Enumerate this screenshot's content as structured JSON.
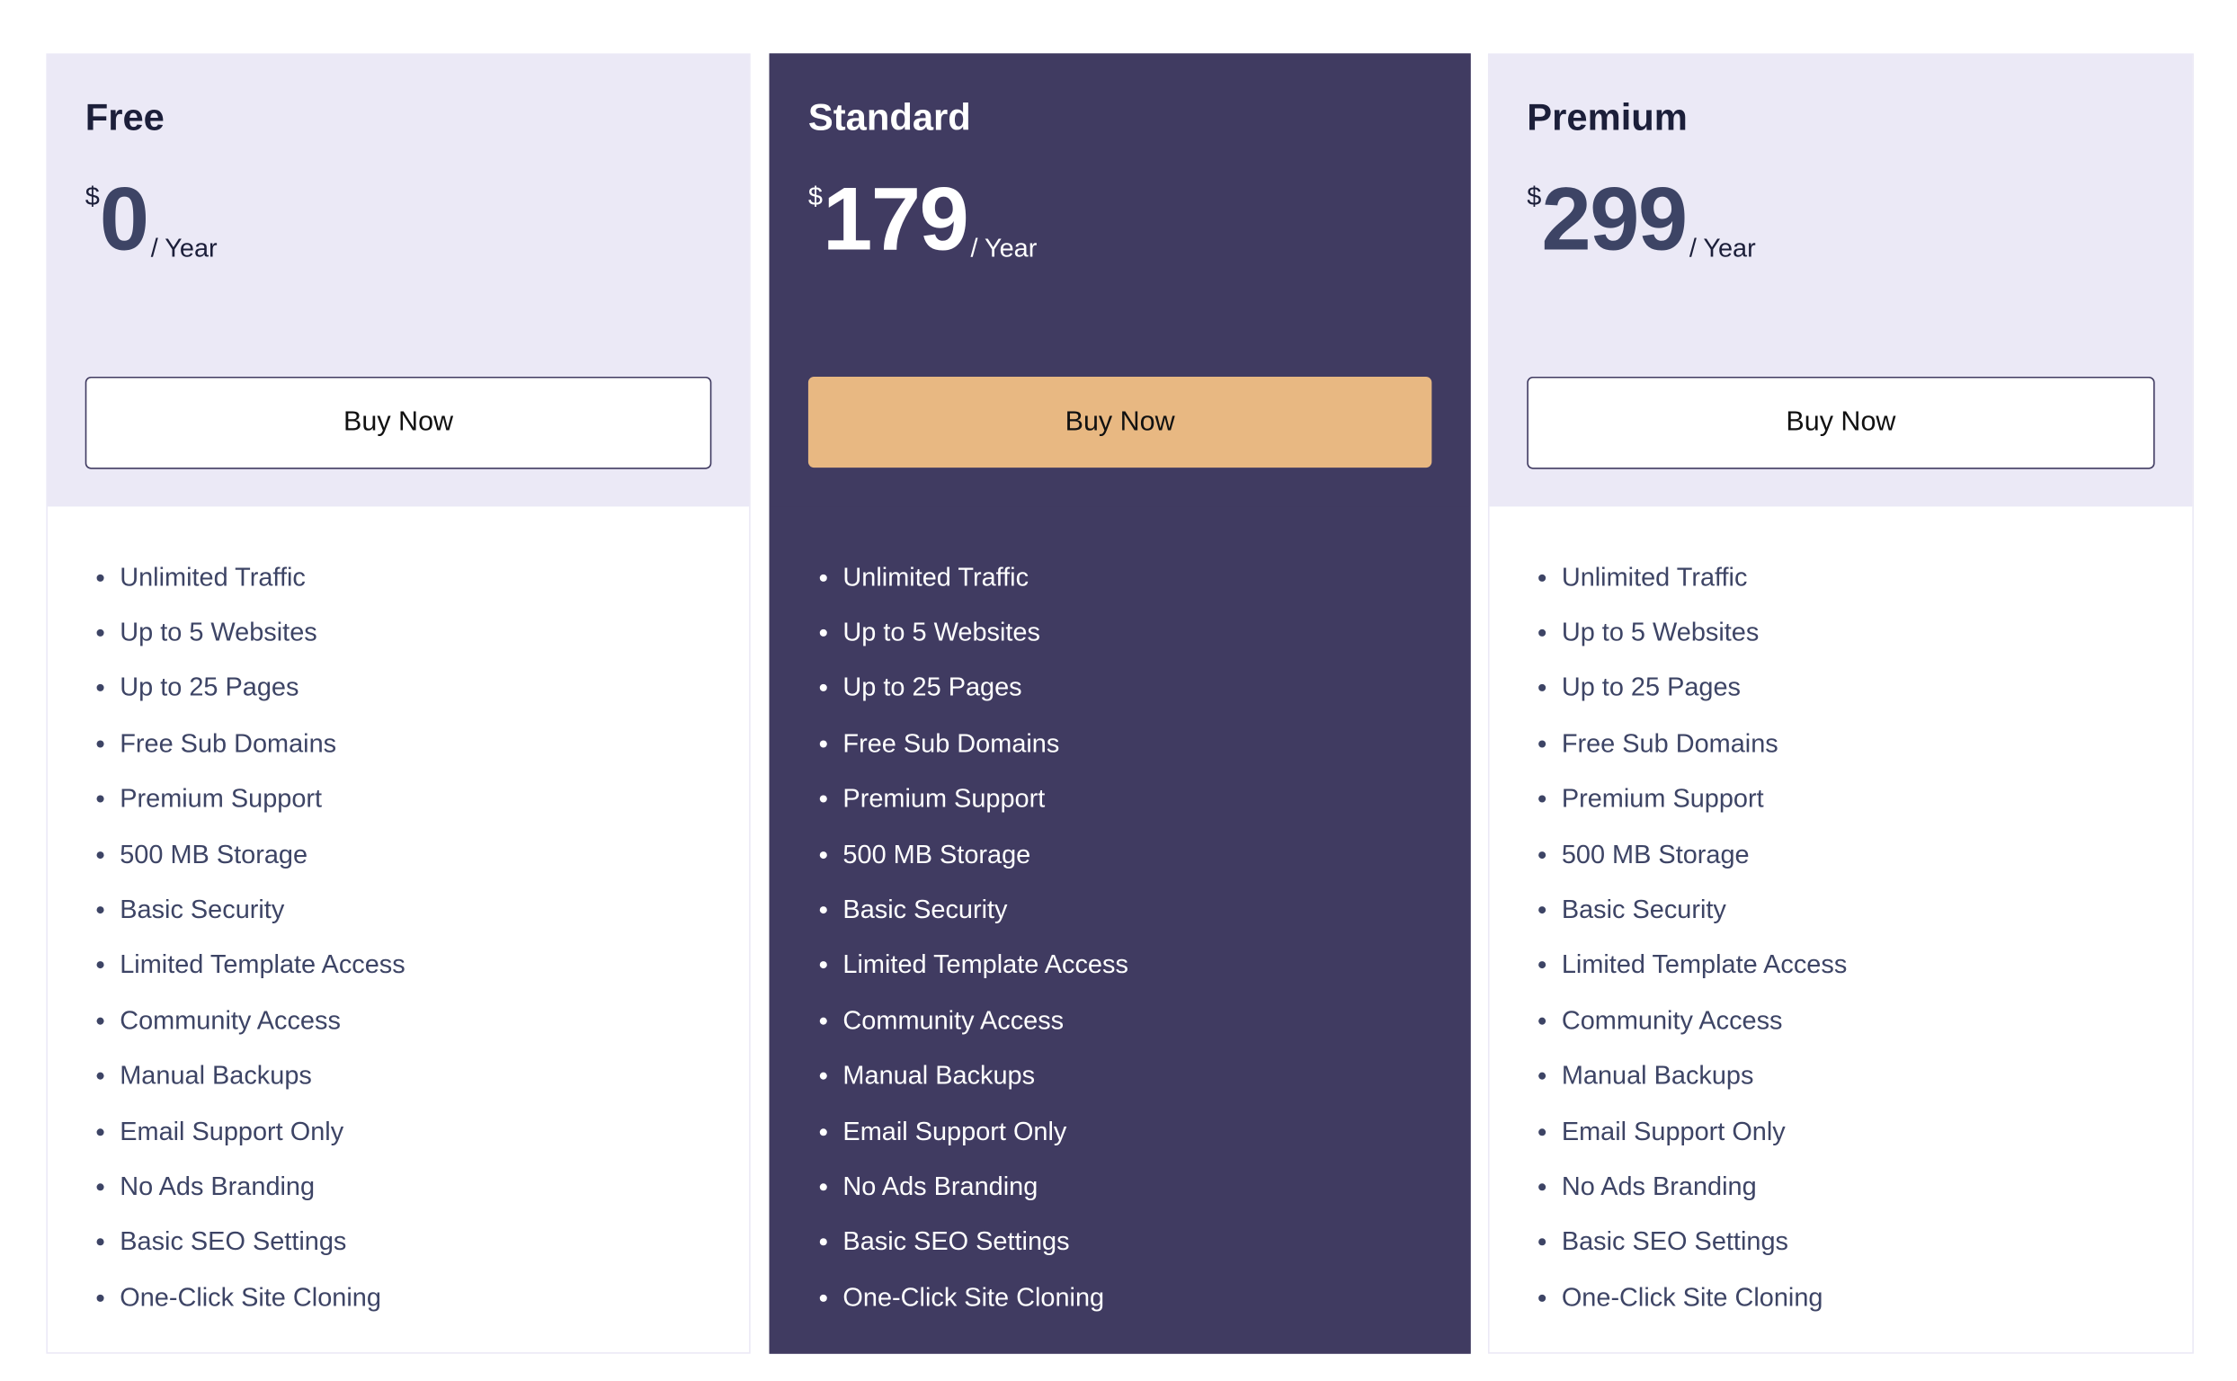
{
  "plans": [
    {
      "name": "Free",
      "currency": "$",
      "price": "0",
      "period": "/ Year",
      "button": "Buy Now"
    },
    {
      "name": "Standard",
      "currency": "$",
      "price": "179",
      "period": "/ Year",
      "button": "Buy Now",
      "highlighted": true
    },
    {
      "name": "Premium",
      "currency": "$",
      "price": "299",
      "period": "/ Year",
      "button": "Buy Now"
    }
  ],
  "features": [
    "Unlimited Traffic",
    "Up to 5 Websites",
    "Up to 25 Pages",
    "Free Sub Domains",
    "Premium Support",
    "500 MB Storage",
    "Basic Security",
    "Limited Template Access",
    "Community Access",
    "Manual Backups",
    "Email Support Only",
    "No Ads Branding",
    "Basic SEO Settings",
    "One-Click Site Cloning"
  ],
  "colors": {
    "light_bg": "#ebe9f6",
    "dark_bg": "#403b61",
    "accent_button": "#e8b882",
    "text": "#3d4465"
  }
}
